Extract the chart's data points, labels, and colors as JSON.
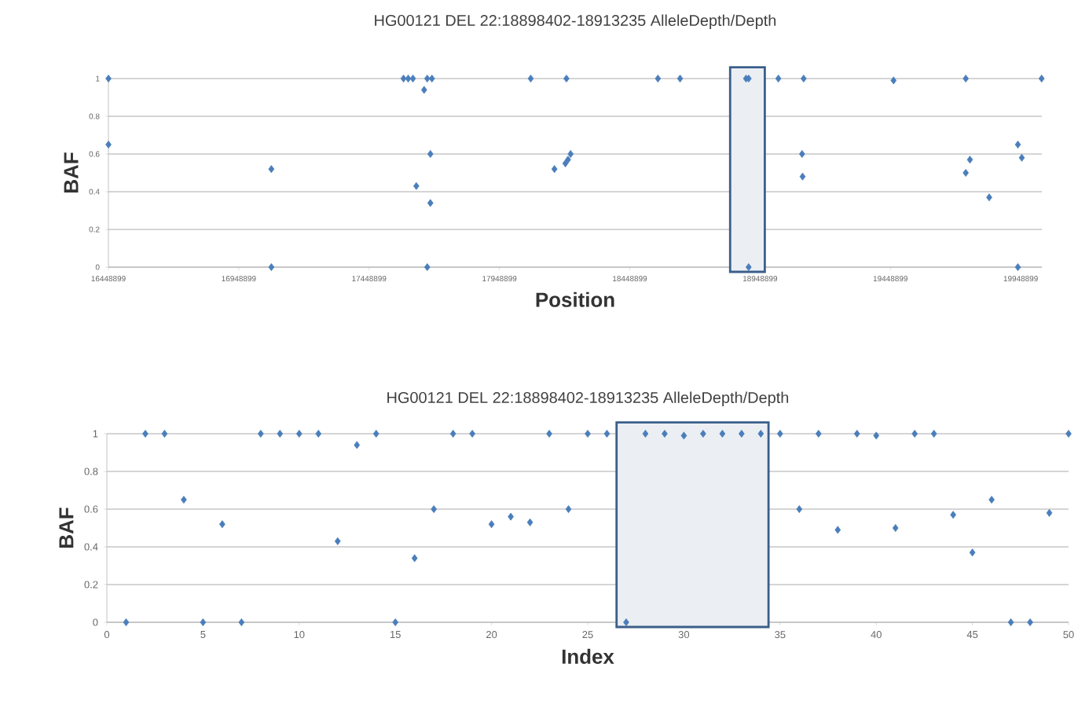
{
  "chart_data": [
    {
      "type": "scatter",
      "title": "HG00121 DEL 22:18898402-18913235  AlleleDepth/Depth",
      "xlabel": "Position",
      "ylabel": "BAF",
      "x": [
        16449000,
        16449000,
        17074000,
        17074000,
        17581000,
        17599000,
        17617000,
        17660000,
        17672000,
        17690000,
        17630000,
        17684000,
        17684000,
        17672000,
        18069000,
        18160000,
        18202000,
        18212000,
        18222000,
        18206000,
        18557000,
        18642000,
        18895000,
        18905000,
        18905000,
        19019000,
        19116000,
        19110000,
        19112000,
        19461000,
        19738000,
        19738000,
        19754000,
        19828000,
        19938000,
        19953000,
        19938000,
        20029000
      ],
      "values": [
        1,
        0.65,
        0.52,
        0,
        1,
        1,
        1,
        0.94,
        1,
        1,
        0.43,
        0.6,
        0.34,
        0,
        1,
        0.52,
        0.55,
        0.57,
        0.6,
        1,
        1,
        1,
        1,
        1,
        0,
        1,
        1,
        0.6,
        0.48,
        0.99,
        1,
        0.5,
        0.57,
        0.37,
        0.65,
        0.58,
        0,
        1
      ],
      "color": "#4a7ebb",
      "marker": "diamond",
      "grid": "y",
      "xlim": [
        16448899,
        20030000
      ],
      "xticks": [
        16448899,
        16948899,
        17448899,
        17948899,
        18448899,
        18948899,
        19448899,
        19948899
      ],
      "ylim": [
        0,
        1
      ],
      "yticks": [
        0,
        0.2,
        0.4,
        0.6,
        0.8,
        1
      ],
      "bands": [
        {
          "axis": "x",
          "from": 18834000,
          "to": 18967000,
          "color": "#3b5f8a"
        }
      ]
    },
    {
      "type": "scatter",
      "title": "HG00121 DEL 22:18898402-18913235  AlleleDepth/Depth",
      "xlabel": "Index",
      "ylabel": "BAF",
      "x": [
        1,
        2,
        3,
        4,
        5,
        6,
        7,
        8,
        9,
        10,
        11,
        12,
        13,
        14,
        15,
        16,
        17,
        18,
        19,
        20,
        21,
        22,
        23,
        24,
        25,
        26,
        27,
        28,
        29,
        30,
        31,
        32,
        33,
        34,
        35,
        36,
        37,
        38,
        39,
        40,
        41,
        42,
        43,
        44,
        45,
        46,
        47,
        48,
        49,
        50
      ],
      "values": [
        0,
        1,
        1,
        0.65,
        0,
        0.52,
        0,
        1,
        1,
        1,
        1,
        0.43,
        0.94,
        1,
        0,
        0.34,
        0.6,
        1,
        1,
        0.52,
        0.56,
        0.53,
        1,
        0.6,
        1,
        1,
        0,
        1,
        1,
        0.99,
        1,
        1,
        1,
        1,
        1,
        0.6,
        1,
        0.49,
        1,
        0.99,
        0.5,
        1,
        1,
        0.57,
        0.37,
        0.65,
        0,
        0,
        0.58,
        1
      ],
      "color": "#4a7ebb",
      "marker": "diamond",
      "grid": "y",
      "xlim": [
        0,
        50
      ],
      "xticks": [
        0,
        5,
        10,
        15,
        20,
        25,
        30,
        35,
        40,
        45,
        50
      ],
      "ylim": [
        0,
        1
      ],
      "yticks": [
        0,
        0.2,
        0.4,
        0.6,
        0.8,
        1
      ],
      "bands": [
        {
          "axis": "x",
          "from": 26.5,
          "to": 34.4,
          "color": "#3b5f8a"
        }
      ]
    }
  ]
}
